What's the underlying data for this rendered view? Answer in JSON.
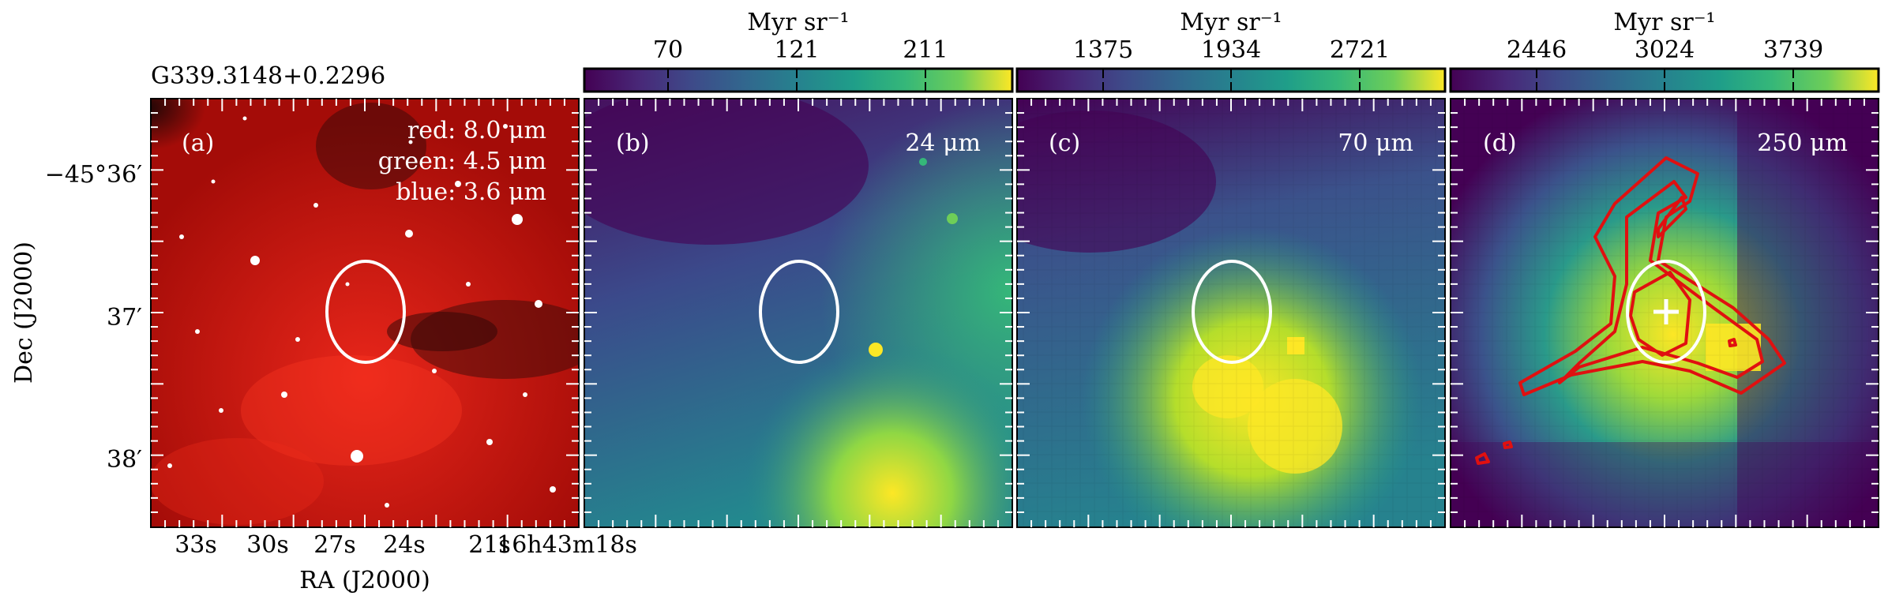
{
  "source_name": "G339.3148+0.2296",
  "axes": {
    "ylabel": "Dec (J2000)",
    "xlabel": "RA (J2000)",
    "dec_ticks": [
      "−45°36′",
      "37′",
      "38′"
    ],
    "ra_ticks": [
      "33s",
      "30s",
      "27s",
      "24s",
      "21s",
      "16h43m18s"
    ]
  },
  "panels": [
    {
      "id": "a",
      "letter": "(a)",
      "legend": [
        "red: 8.0 μm",
        "green: 4.5 μm",
        "blue: 3.6 μm"
      ],
      "image": "three-color IRAC composite",
      "colors": {
        "dominant": "#c8140e",
        "dark": "#200808"
      }
    },
    {
      "id": "b",
      "letter": "(b)",
      "band": "24 μm",
      "colorbar": {
        "unit": "Myr sr⁻¹",
        "ticks": [
          "70",
          "121",
          "211"
        ],
        "colormap": "viridis"
      }
    },
    {
      "id": "c",
      "letter": "(c)",
      "band": "70 μm",
      "colorbar": {
        "unit": "Myr sr⁻¹",
        "ticks": [
          "1375",
          "1934",
          "2721"
        ],
        "colormap": "viridis"
      }
    },
    {
      "id": "d",
      "letter": "(d)",
      "band": "250 μm",
      "colorbar": {
        "unit": "Myr sr⁻¹",
        "ticks": [
          "2446",
          "3024",
          "3739"
        ],
        "colormap": "viridis"
      },
      "overlays": [
        "red contours",
        "white plus marker"
      ]
    }
  ],
  "common_overlay": "white ellipse",
  "colors": {
    "contour": "#e01010",
    "ellipse": "#ffffff"
  }
}
